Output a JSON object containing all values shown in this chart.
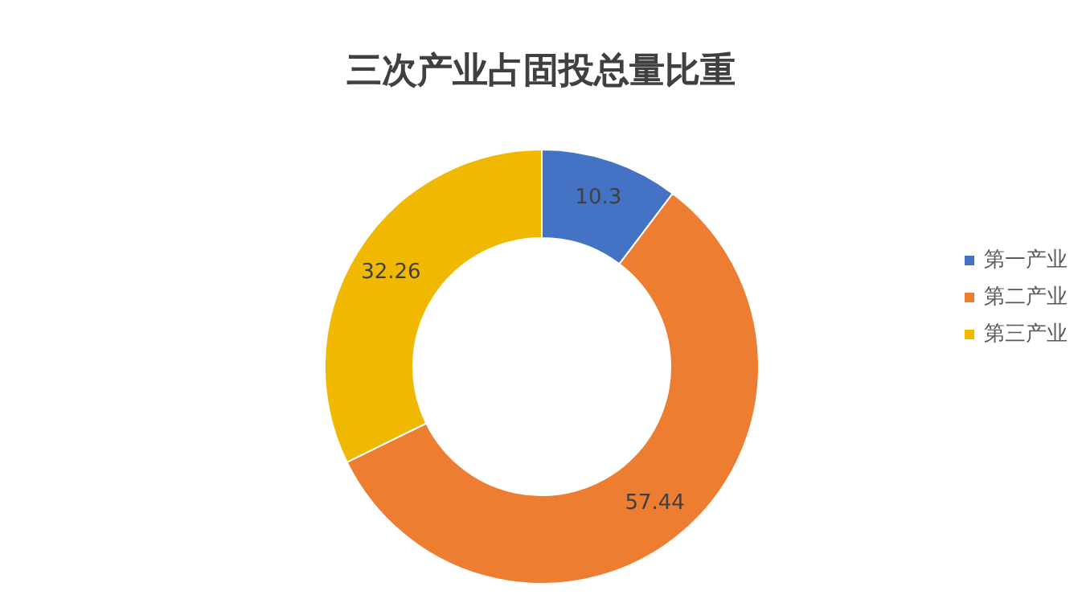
{
  "chart_data": {
    "type": "donut",
    "title": "三次产业占固投总量比重",
    "categories": [
      "第一产业",
      "第二产业",
      "第三产业"
    ],
    "values": [
      10.3,
      57.44,
      32.26
    ],
    "colors": [
      "#4472c4",
      "#ed7d31",
      "#f0b800"
    ],
    "data_labels": true,
    "legend": "right"
  }
}
